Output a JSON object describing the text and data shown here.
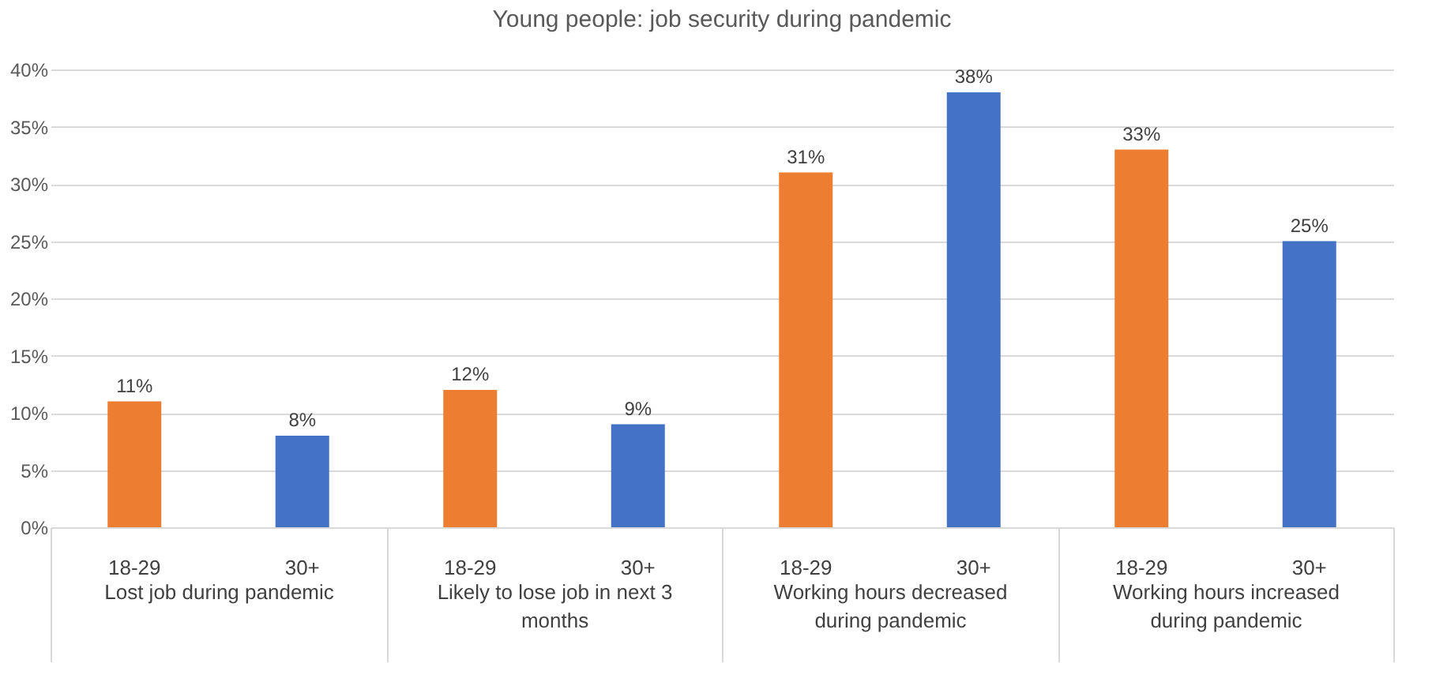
{
  "chart_data": {
    "type": "bar",
    "title": "Young people: job security during pandemic",
    "categories": [
      "Lost job during pandemic",
      "Likely to lose job in next 3 months",
      "Working hours decreased during pandemic",
      "Working hours increased during pandemic"
    ],
    "series": [
      {
        "name": "18-29",
        "color": "#ed7d31",
        "values": [
          11,
          12,
          31,
          33
        ],
        "value_labels": [
          "11%",
          "12%",
          "31%",
          "33%"
        ]
      },
      {
        "name": "30+",
        "color": "#4472c4",
        "values": [
          8,
          9,
          38,
          25
        ],
        "value_labels": [
          "8%",
          "9%",
          "38%",
          "25%"
        ]
      }
    ],
    "ylim": [
      0,
      40
    ],
    "yticks": [
      {
        "value": 0,
        "label": "0%"
      },
      {
        "value": 5,
        "label": "5%"
      },
      {
        "value": 10,
        "label": "10%"
      },
      {
        "value": 15,
        "label": "15%"
      },
      {
        "value": 20,
        "label": "20%"
      },
      {
        "value": 25,
        "label": "25%"
      },
      {
        "value": 30,
        "label": "30%"
      },
      {
        "value": 35,
        "label": "35%"
      },
      {
        "value": 40,
        "label": "40%"
      }
    ],
    "grid": "y",
    "legend": false
  }
}
